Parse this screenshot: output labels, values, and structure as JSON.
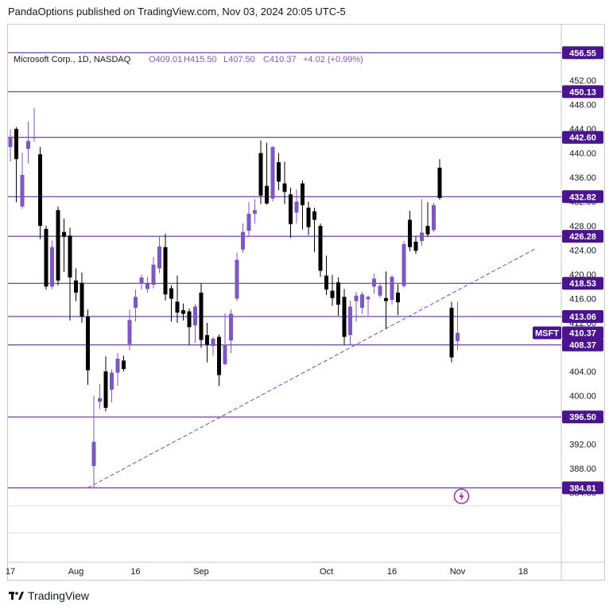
{
  "header": {
    "published": "PandaOptions published on TradingView.com, Nov 03, 2024 20:05 UTC-5"
  },
  "legend": {
    "symbol": "Microsoft Corp., 1D, NASDAQ",
    "open": "O409.01",
    "high": "H415.50",
    "low": "L407.50",
    "close": "C410.37",
    "change": "+4.02 (+0.99%)"
  },
  "footer": {
    "brand": "TradingView"
  },
  "colors": {
    "up": "#7e57c2",
    "down": "#000000",
    "level_line": "#4a148c",
    "trendline": "#5b4fd6",
    "label_bg": "#4a148c",
    "grid": "#e8e8ec"
  },
  "chart_data": {
    "type": "candlestick",
    "title": "Microsoft Corp., 1D, NASDAQ",
    "ylim": [
      382.5,
      460
    ],
    "y_ticks": [
      456.0,
      452.0,
      448.0,
      444.0,
      440.0,
      436.0,
      432.0,
      428.0,
      424.0,
      420.0,
      416.0,
      412.0,
      408.0,
      404.0,
      400.0,
      396.0,
      392.0,
      388.0,
      384.0
    ],
    "x_ticks": [
      {
        "label": "17",
        "day": 0
      },
      {
        "label": "Aug",
        "day": 11
      },
      {
        "label": "16",
        "day": 21
      },
      {
        "label": "Sep",
        "day": 32
      },
      {
        "label": "Oct",
        "day": 53
      },
      {
        "label": "16",
        "day": 64
      },
      {
        "label": "Nov",
        "day": 75
      },
      {
        "label": "18",
        "day": 86
      }
    ],
    "price_levels": [
      456.55,
      450.13,
      442.6,
      432.82,
      426.28,
      418.53,
      413.06,
      408.37,
      396.5,
      384.81
    ],
    "last_price": {
      "label": "MSFT",
      "value": 410.37
    },
    "trendline": {
      "from": {
        "day": 13,
        "price": 384.8
      },
      "to": {
        "day": 88,
        "price": 424.2
      }
    },
    "candles": [
      {
        "d": 0,
        "o": 441.0,
        "h": 443.9,
        "l": 438.6,
        "c": 442.5
      },
      {
        "d": 1,
        "o": 444.0,
        "h": 444.3,
        "l": 431.9,
        "c": 439.0
      },
      {
        "d": 2,
        "o": 431.2,
        "h": 440.1,
        "l": 430.8,
        "c": 436.4
      },
      {
        "d": 3,
        "o": 440.7,
        "h": 445.2,
        "l": 438.3,
        "c": 442.0
      },
      {
        "d": 4,
        "o": 442.5,
        "h": 447.5,
        "l": 441.9,
        "c": 442.6
      },
      {
        "d": 5,
        "o": 439.8,
        "h": 441.0,
        "l": 425.8,
        "c": 428.0
      },
      {
        "d": 6,
        "o": 427.5,
        "h": 428.0,
        "l": 417.5,
        "c": 418.0
      },
      {
        "d": 7,
        "o": 418.0,
        "h": 425.6,
        "l": 417.6,
        "c": 424.5
      },
      {
        "d": 8,
        "o": 430.6,
        "h": 431.2,
        "l": 418.2,
        "c": 419.0
      },
      {
        "d": 9,
        "o": 427.0,
        "h": 429.2,
        "l": 420.4,
        "c": 426.2
      },
      {
        "d": 10,
        "o": 426.4,
        "h": 427.7,
        "l": 412.4,
        "c": 419.5
      },
      {
        "d": 11,
        "o": 419.0,
        "h": 421.0,
        "l": 415.6,
        "c": 417.0
      },
      {
        "d": 12,
        "o": 418.6,
        "h": 420.3,
        "l": 412.0,
        "c": 413.0
      },
      {
        "d": 13,
        "o": 413.0,
        "h": 414.2,
        "l": 401.8,
        "c": 404.2
      },
      {
        "d": 14,
        "o": 388.4,
        "h": 400.0,
        "l": 384.8,
        "c": 392.4
      },
      {
        "d": 15,
        "o": 399.0,
        "h": 401.9,
        "l": 397.8,
        "c": 399.6
      },
      {
        "d": 16,
        "o": 404.0,
        "h": 406.5,
        "l": 397.4,
        "c": 398.0
      },
      {
        "d": 17,
        "o": 401.0,
        "h": 404.3,
        "l": 398.9,
        "c": 403.8
      },
      {
        "d": 18,
        "o": 403.8,
        "h": 407.0,
        "l": 401.6,
        "c": 406.1
      },
      {
        "d": 19,
        "o": 405.8,
        "h": 406.6,
        "l": 404.0,
        "c": 404.4
      },
      {
        "d": 20,
        "o": 408.5,
        "h": 414.2,
        "l": 407.5,
        "c": 412.5
      },
      {
        "d": 21,
        "o": 414.5,
        "h": 417.5,
        "l": 412.2,
        "c": 416.3
      },
      {
        "d": 22,
        "o": 418.5,
        "h": 420.0,
        "l": 417.5,
        "c": 419.5
      },
      {
        "d": 23,
        "o": 417.6,
        "h": 419.6,
        "l": 417.0,
        "c": 418.5
      },
      {
        "d": 24,
        "o": 418.3,
        "h": 422.9,
        "l": 417.7,
        "c": 421.6
      },
      {
        "d": 25,
        "o": 421.0,
        "h": 426.2,
        "l": 420.2,
        "c": 424.6
      },
      {
        "d": 26,
        "o": 424.5,
        "h": 426.7,
        "l": 415.7,
        "c": 416.7
      },
      {
        "d": 27,
        "o": 417.7,
        "h": 418.2,
        "l": 412.2,
        "c": 416.0
      },
      {
        "d": 28,
        "o": 415.5,
        "h": 419.8,
        "l": 412.0,
        "c": 413.7
      },
      {
        "d": 29,
        "o": 414.1,
        "h": 415.2,
        "l": 412.4,
        "c": 413.5
      },
      {
        "d": 30,
        "o": 413.9,
        "h": 414.4,
        "l": 408.3,
        "c": 411.3
      },
      {
        "d": 31,
        "o": 411.6,
        "h": 415.1,
        "l": 408.7,
        "c": 414.7
      },
      {
        "d": 32,
        "o": 417.0,
        "h": 418.5,
        "l": 407.9,
        "c": 409.2
      },
      {
        "d": 33,
        "o": 410.0,
        "h": 412.0,
        "l": 405.5,
        "c": 408.4
      },
      {
        "d": 34,
        "o": 408.2,
        "h": 409.7,
        "l": 406.6,
        "c": 409.4
      },
      {
        "d": 35,
        "o": 409.7,
        "h": 410.1,
        "l": 401.6,
        "c": 403.4
      },
      {
        "d": 36,
        "o": 405.2,
        "h": 413.6,
        "l": 405.0,
        "c": 408.4
      },
      {
        "d": 37,
        "o": 409.1,
        "h": 414.2,
        "l": 407.0,
        "c": 413.5
      },
      {
        "d": 38,
        "o": 416.0,
        "h": 423.6,
        "l": 415.6,
        "c": 422.4
      },
      {
        "d": 39,
        "o": 424.1,
        "h": 428.4,
        "l": 423.6,
        "c": 427.0
      },
      {
        "d": 40,
        "o": 427.2,
        "h": 431.9,
        "l": 426.4,
        "c": 430.0
      },
      {
        "d": 41,
        "o": 430.0,
        "h": 432.4,
        "l": 428.4,
        "c": 430.6
      },
      {
        "d": 42,
        "o": 440.0,
        "h": 442.1,
        "l": 431.6,
        "c": 433.0
      },
      {
        "d": 43,
        "o": 434.6,
        "h": 441.7,
        "l": 431.5,
        "c": 431.7
      },
      {
        "d": 44,
        "o": 432.5,
        "h": 441.2,
        "l": 432.0,
        "c": 441.0
      },
      {
        "d": 45,
        "o": 438.5,
        "h": 440.0,
        "l": 433.9,
        "c": 435.3
      },
      {
        "d": 46,
        "o": 435.0,
        "h": 438.6,
        "l": 431.6,
        "c": 433.6
      },
      {
        "d": 47,
        "o": 433.2,
        "h": 434.3,
        "l": 426.0,
        "c": 428.3
      },
      {
        "d": 48,
        "o": 430.2,
        "h": 434.0,
        "l": 428.4,
        "c": 432.0
      },
      {
        "d": 49,
        "o": 435.0,
        "h": 435.5,
        "l": 427.4,
        "c": 431.4
      },
      {
        "d": 50,
        "o": 431.0,
        "h": 432.0,
        "l": 426.5,
        "c": 427.8
      },
      {
        "d": 51,
        "o": 430.4,
        "h": 431.0,
        "l": 423.7,
        "c": 429.0
      },
      {
        "d": 52,
        "o": 428.0,
        "h": 428.4,
        "l": 419.6,
        "c": 420.6
      },
      {
        "d": 53,
        "o": 419.8,
        "h": 423.1,
        "l": 416.6,
        "c": 417.5
      },
      {
        "d": 54,
        "o": 417.3,
        "h": 419.9,
        "l": 414.8,
        "c": 416.1
      },
      {
        "d": 55,
        "o": 418.7,
        "h": 419.5,
        "l": 413.2,
        "c": 415.0
      },
      {
        "d": 56,
        "o": 416.3,
        "h": 417.6,
        "l": 408.4,
        "c": 409.7
      },
      {
        "d": 57,
        "o": 410.0,
        "h": 415.7,
        "l": 408.4,
        "c": 414.7
      },
      {
        "d": 58,
        "o": 415.6,
        "h": 417.1,
        "l": 412.2,
        "c": 416.5
      },
      {
        "d": 59,
        "o": 414.5,
        "h": 417.1,
        "l": 413.5,
        "c": 416.7
      },
      {
        "d": 60,
        "o": 415.9,
        "h": 416.5,
        "l": 413.2,
        "c": 416.3
      },
      {
        "d": 61,
        "o": 418.0,
        "h": 420.1,
        "l": 416.8,
        "c": 419.3
      },
      {
        "d": 62,
        "o": 416.5,
        "h": 418.5,
        "l": 416.1,
        "c": 418.1
      },
      {
        "d": 63,
        "o": 416.1,
        "h": 420.5,
        "l": 411.0,
        "c": 415.6
      },
      {
        "d": 64,
        "o": 415.8,
        "h": 419.9,
        "l": 415.0,
        "c": 419.6
      },
      {
        "d": 65,
        "o": 417.0,
        "h": 418.4,
        "l": 413.3,
        "c": 415.4
      },
      {
        "d": 66,
        "o": 418.1,
        "h": 425.5,
        "l": 417.8,
        "c": 425.0
      },
      {
        "d": 67,
        "o": 429.0,
        "h": 430.5,
        "l": 423.8,
        "c": 424.5
      },
      {
        "d": 68,
        "o": 425.4,
        "h": 426.3,
        "l": 423.4,
        "c": 423.9
      },
      {
        "d": 69,
        "o": 425.5,
        "h": 432.4,
        "l": 424.7,
        "c": 426.9
      },
      {
        "d": 70,
        "o": 428.0,
        "h": 431.9,
        "l": 426.2,
        "c": 426.6
      },
      {
        "d": 71,
        "o": 427.3,
        "h": 431.8,
        "l": 427.0,
        "c": 431.4
      },
      {
        "d": 72,
        "o": 437.6,
        "h": 439.0,
        "l": 432.3,
        "c": 432.6
      },
      {
        "d": 74,
        "o": 414.5,
        "h": 415.5,
        "l": 405.5,
        "c": 406.3
      },
      {
        "d": 75,
        "o": 409.01,
        "h": 415.5,
        "l": 407.5,
        "c": 410.37
      }
    ]
  }
}
